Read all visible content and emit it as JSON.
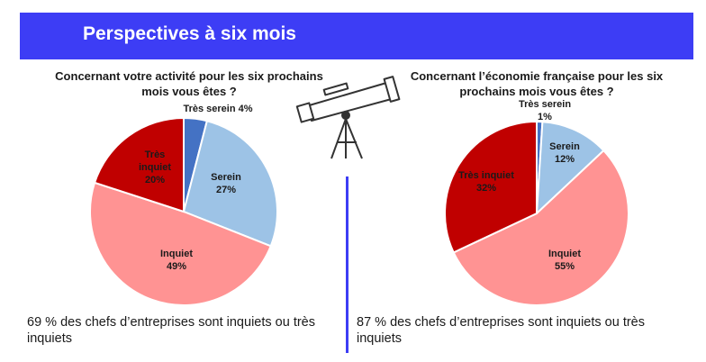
{
  "banner": {
    "title": "Perspectives à six mois"
  },
  "colors": {
    "banner": "#3d3df5",
    "tres_serein": "#4472c4",
    "serein": "#9dc3e6",
    "inquiet": "#ff9393",
    "tres_inquiet": "#c00000"
  },
  "icons": {
    "telescope": "telescope-icon"
  },
  "chart_data": [
    {
      "type": "pie",
      "title": "Concernant votre activité pour les six prochains mois vous êtes ?",
      "categories": [
        "Très serein",
        "Serein",
        "Inquiet",
        "Très inquiet"
      ],
      "values": [
        4,
        27,
        49,
        20
      ],
      "labels": [
        "Très serein 4%",
        "Serein\n27%",
        "Inquiet\n49%",
        "Très\ninquiet\n20%"
      ],
      "summary": "69 % des chefs d’entreprises sont inquiets ou très inquiets"
    },
    {
      "type": "pie",
      "title": "Concernant l’économie française pour les six prochains mois vous êtes ?",
      "categories": [
        "Très serein",
        "Serein",
        "Inquiet",
        "Très inquiet"
      ],
      "values": [
        1,
        12,
        55,
        32
      ],
      "labels": [
        "Très serein\n1%",
        "Serein\n12%",
        "Inquiet\n55%",
        "Très inquiet\n32%"
      ],
      "summary": "87 % des chefs d’entreprises sont inquiets ou très inquiets"
    }
  ]
}
